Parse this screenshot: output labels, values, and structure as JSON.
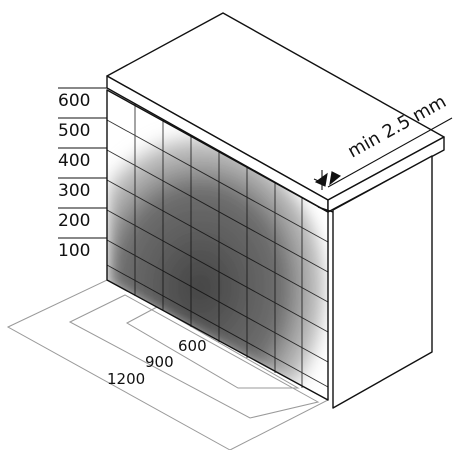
{
  "scale_labels": [
    "600",
    "500",
    "400",
    "300",
    "200",
    "100"
  ],
  "distance_labels": [
    "600",
    "900",
    "1200"
  ],
  "dimension_label": "min 2.5 mm",
  "colors": {
    "line": "#111111",
    "light_line": "#9a9a9a",
    "cloud": "#444444"
  }
}
